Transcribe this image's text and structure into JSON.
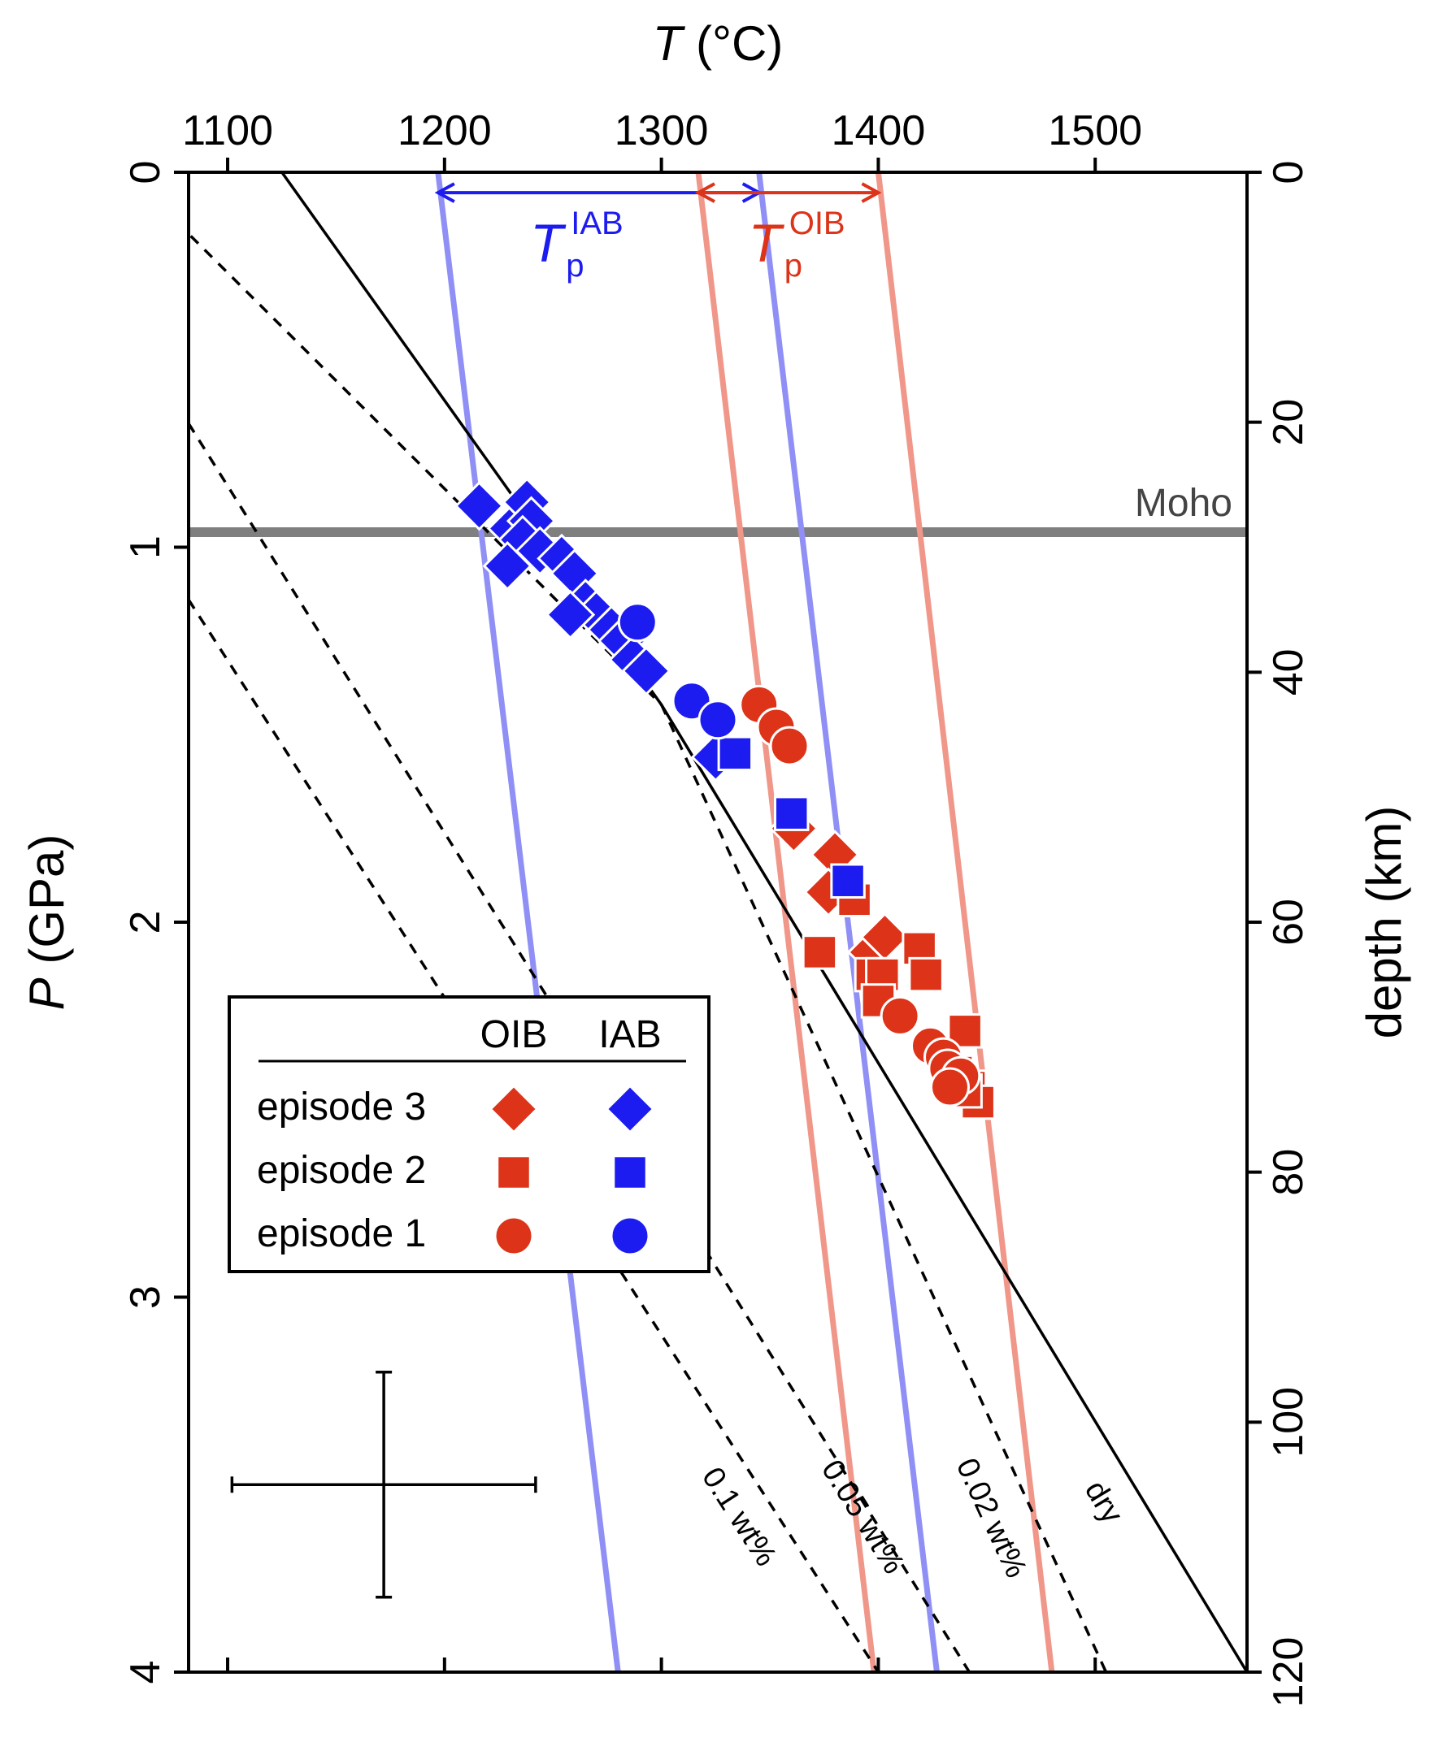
{
  "chart_data": {
    "type": "scatter",
    "title": "",
    "x_axis": {
      "label_italic": "T",
      "label_rest": " (°C)",
      "range": [
        1082,
        1570
      ],
      "ticks": [
        1100,
        1200,
        1300,
        1400,
        1500
      ],
      "position": "top"
    },
    "y_axis_left": {
      "label_italic": "P",
      "label_rest": " (GPa)",
      "range": [
        0,
        4
      ],
      "ticks": [
        0,
        1,
        2,
        3,
        4
      ],
      "inverted": true
    },
    "y_axis_right": {
      "label": "depth (km)",
      "range": [
        0,
        120
      ],
      "ticks": [
        0,
        20,
        40,
        60,
        80,
        100,
        120
      ],
      "inverted": true
    },
    "grid": false,
    "moho": {
      "label": "Moho",
      "P": 0.96,
      "color": "#7f7f7f"
    },
    "solidus_lines": [
      {
        "name": "dry",
        "label": "dry",
        "style": "solid",
        "points": [
          [
            1125,
            0
          ],
          [
            1300,
            1.42
          ],
          [
            1570,
            4.0
          ]
        ],
        "label_at": [
          1500,
          3.56
        ]
      },
      {
        "name": "0.02 wt%",
        "label": "0.02 wt%",
        "style": "dashed",
        "points": [
          [
            1300,
            1.42
          ],
          [
            1505,
            4.0
          ]
        ],
        "label_at": [
          1448,
          3.6
        ]
      },
      {
        "name": "0.05 wt%",
        "label": "0.05 wt%",
        "style": "dashed",
        "points": [
          [
            1082,
            0.67
          ],
          [
            1442,
            4.0
          ]
        ],
        "label_at": [
          1389,
          3.6
        ]
      },
      {
        "name": "0.1 wt%",
        "label": "0.1 wt%",
        "style": "dashed",
        "points": [
          [
            1082,
            1.14
          ],
          [
            1400,
            4.0
          ]
        ],
        "label_at": [
          1332,
          3.6
        ]
      },
      {
        "name": "dashed-upper",
        "label": "",
        "style": "dashed",
        "points": [
          [
            1083,
            0.17
          ],
          [
            1300,
            1.42
          ]
        ]
      }
    ],
    "adiabats": [
      {
        "group": "IAB",
        "color": "#8f8ff5",
        "points": [
          [
            1197,
            0
          ],
          [
            1280,
            4.0
          ]
        ]
      },
      {
        "group": "IAB",
        "color": "#8f8ff5",
        "points": [
          [
            1345,
            0
          ],
          [
            1427,
            4.0
          ]
        ]
      },
      {
        "group": "OIB",
        "color": "#f0978a",
        "points": [
          [
            1317,
            0
          ],
          [
            1398,
            4.0
          ]
        ]
      },
      {
        "group": "OIB",
        "color": "#f0978a",
        "points": [
          [
            1400,
            0
          ],
          [
            1480,
            4.0
          ]
        ]
      }
    ],
    "tp_ranges": [
      {
        "label_main": "T",
        "label_sub": "p",
        "label_sup": "IAB",
        "color": "#1c1cf0",
        "range": [
          1197,
          1345
        ],
        "P": 0.05
      },
      {
        "label_main": "T",
        "label_sub": "p",
        "label_sup": "OIB",
        "color": "#dd3319",
        "range": [
          1317,
          1400
        ],
        "P": 0.05
      }
    ],
    "series": [
      {
        "name": "episode 3",
        "group": "OIB",
        "marker": "diamond",
        "color": "#dd3319",
        "points": [
          [
            1361,
            1.75
          ],
          [
            1380,
            1.82
          ],
          [
            1377,
            1.92
          ],
          [
            1401,
            2.06
          ],
          [
            1397,
            2.08
          ],
          [
            1403,
            2.04
          ]
        ]
      },
      {
        "name": "episode 2",
        "group": "OIB",
        "marker": "square",
        "color": "#dd3319",
        "points": [
          [
            1389,
            1.94
          ],
          [
            1373,
            2.08
          ],
          [
            1397,
            2.14
          ],
          [
            1402,
            2.14
          ],
          [
            1419,
            2.07
          ],
          [
            1422,
            2.14
          ],
          [
            1400,
            2.21
          ],
          [
            1440,
            2.29
          ],
          [
            1436,
            2.4
          ],
          [
            1442,
            2.44
          ],
          [
            1446,
            2.48
          ],
          [
            1440,
            2.45
          ]
        ]
      },
      {
        "name": "episode 1",
        "group": "OIB",
        "marker": "circle",
        "color": "#dd3319",
        "points": [
          [
            1345,
            1.42
          ],
          [
            1353,
            1.48
          ],
          [
            1359,
            1.53
          ],
          [
            1410,
            2.25
          ],
          [
            1424,
            2.33
          ],
          [
            1430,
            2.36
          ],
          [
            1432,
            2.39
          ],
          [
            1438,
            2.41
          ],
          [
            1433,
            2.44
          ]
        ]
      },
      {
        "name": "episode 3",
        "group": "IAB",
        "marker": "diamond",
        "color": "#1c1cf0",
        "points": [
          [
            1216,
            0.89
          ],
          [
            1231,
            0.95
          ],
          [
            1238,
            0.88
          ],
          [
            1240,
            0.93
          ],
          [
            1236,
            0.98
          ],
          [
            1244,
            1.01
          ],
          [
            1229,
            1.05
          ],
          [
            1254,
            1.03
          ],
          [
            1260,
            1.07
          ],
          [
            1265,
            1.15
          ],
          [
            1270,
            1.18
          ],
          [
            1258,
            1.18
          ],
          [
            1277,
            1.22
          ],
          [
            1282,
            1.25
          ],
          [
            1287,
            1.3
          ],
          [
            1293,
            1.33
          ],
          [
            1325,
            1.56
          ]
        ]
      },
      {
        "name": "episode 2",
        "group": "IAB",
        "marker": "square",
        "color": "#1c1cf0",
        "points": [
          [
            1334,
            1.55
          ],
          [
            1360,
            1.71
          ],
          [
            1386,
            1.89
          ]
        ]
      },
      {
        "name": "episode 1",
        "group": "IAB",
        "marker": "circle",
        "color": "#1c1cf0",
        "points": [
          [
            1289,
            1.2
          ],
          [
            1314,
            1.41
          ],
          [
            1326,
            1.46
          ]
        ]
      }
    ],
    "error_bar": {
      "x": 1172,
      "P": 3.5,
      "x_err": 70,
      "P_err": 0.3
    },
    "legend": {
      "position": "bottom-left",
      "columns": [
        "OIB",
        "IAB"
      ],
      "rows": [
        {
          "label": "episode 3",
          "marker": "diamond"
        },
        {
          "label": "episode 2",
          "marker": "square"
        },
        {
          "label": "episode 1",
          "marker": "circle"
        }
      ],
      "colors": {
        "OIB": "#dd3319",
        "IAB": "#1c1cf0"
      }
    }
  }
}
